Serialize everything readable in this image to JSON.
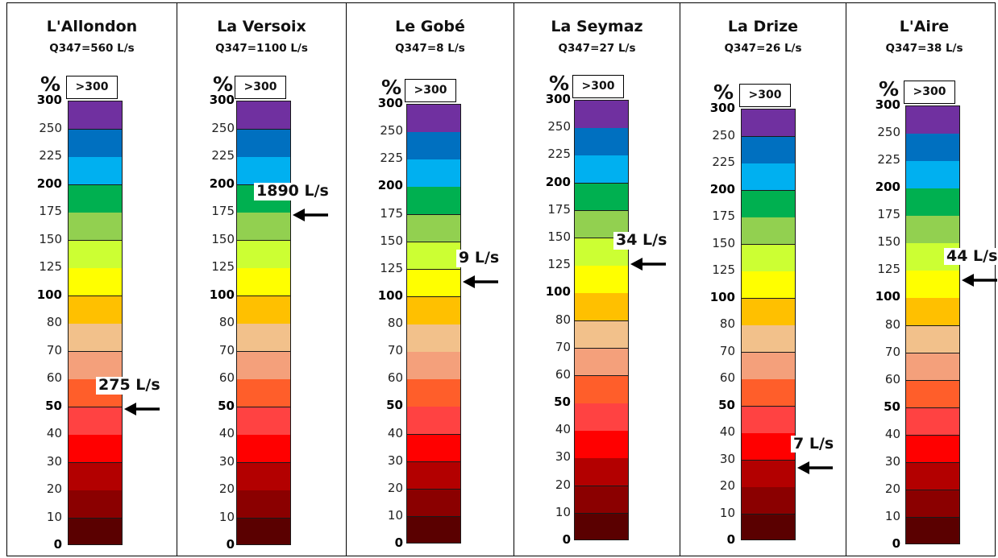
{
  "chart_data": {
    "type": "table",
    "unit_label": "%",
    "overflow_label": ">300",
    "scale_ticks": [
      "0",
      "10",
      "20",
      "30",
      "40",
      "50",
      "60",
      "70",
      "80",
      "100",
      "125",
      "150",
      "175",
      "200",
      "225",
      "250",
      "300"
    ],
    "bold_ticks": [
      "0",
      "50",
      "100",
      "200",
      "300"
    ],
    "band_colors": [
      "#5a0000",
      "#8b0000",
      "#b30000",
      "#ff0000",
      "#ff4242",
      "#ff5e2a",
      "#f4a07b",
      "#f2c18b",
      "#ffc000",
      "#ffff00",
      "#ccff33",
      "#92d050",
      "#00b050",
      "#00b0f0",
      "#0070c0",
      "#7030a0"
    ],
    "panels": [
      {
        "river": "L'Allondon",
        "q347": "Q347=560 L/s",
        "flow_label": "275 L/s",
        "flow_percent": 49
      },
      {
        "river": "La Versoix",
        "q347": "Q347=1100 L/s",
        "flow_label": "1890 L/s",
        "flow_percent": 172
      },
      {
        "river": "Le Gobé",
        "q347": "Q347=8 L/s",
        "flow_label": "9 L/s",
        "flow_percent": 113
      },
      {
        "river": "La Seymaz",
        "q347": "Q347=27 L/s",
        "flow_label": "34 L/s",
        "flow_percent": 126
      },
      {
        "river": "La Drize",
        "q347": "Q347=26 L/s",
        "flow_label": "7 L/s",
        "flow_percent": 27
      },
      {
        "river": "L'Aire",
        "q347": "Q347=38 L/s",
        "flow_label": "44 L/s",
        "flow_percent": 116
      }
    ]
  }
}
